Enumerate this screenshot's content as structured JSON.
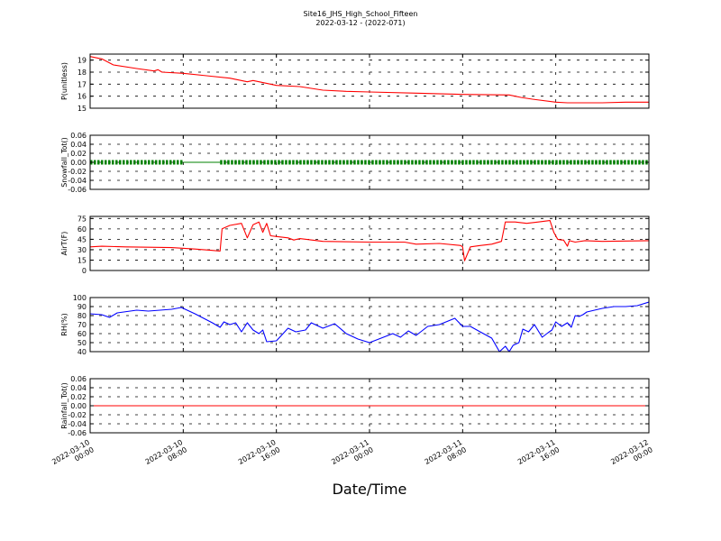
{
  "figure": {
    "title": "Site16_JHS_High_School_Fifteen",
    "subtitle": "2022-03-12 - (2022-071)",
    "xlabel": "Date/Time"
  },
  "colors": {
    "red": "#ff0000",
    "green": "#008000",
    "blue": "#0000ff",
    "axis": "#000000"
  },
  "chart_data": [
    {
      "type": "line",
      "ylabel": "P(unitless)",
      "ylim": [
        15,
        19.5
      ],
      "yticks": [
        15,
        16,
        17,
        18,
        19
      ],
      "ytick_labels": [
        "15",
        "16",
        "17",
        "18",
        "19"
      ],
      "grid": "dashed",
      "series": [
        {
          "color": "#ff0000",
          "x": [
            "2022-03-10 00:00",
            "2022-03-10 01:00",
            "2022-03-10 02:00",
            "2022-03-10 04:00",
            "2022-03-10 05:30",
            "2022-03-10 05:50",
            "2022-03-10 06:10",
            "2022-03-10 08:00",
            "2022-03-10 10:00",
            "2022-03-10 12:00",
            "2022-03-10 13:30",
            "2022-03-10 14:00",
            "2022-03-10 16:00",
            "2022-03-10 18:00",
            "2022-03-10 20:00",
            "2022-03-10 22:00",
            "2022-03-11 00:00",
            "2022-03-11 04:00",
            "2022-03-11 08:00",
            "2022-03-11 12:00",
            "2022-03-11 13:00",
            "2022-03-11 14:00",
            "2022-03-11 16:00",
            "2022-03-11 17:00",
            "2022-03-11 20:00",
            "2022-03-11 22:00",
            "2022-03-12 00:00"
          ],
          "y": [
            19.3,
            19.1,
            18.6,
            18.3,
            18.1,
            18.2,
            18.0,
            17.9,
            17.7,
            17.5,
            17.2,
            17.3,
            16.9,
            16.8,
            16.5,
            16.4,
            16.35,
            16.25,
            16.15,
            16.1,
            15.9,
            15.75,
            15.5,
            15.45,
            15.45,
            15.5,
            15.5
          ]
        }
      ]
    },
    {
      "type": "line",
      "ylabel": "Snowfall_Tot()",
      "ylim": [
        -0.06,
        0.06
      ],
      "yticks": [
        -0.06,
        -0.04,
        -0.02,
        0,
        0.02,
        0.04,
        0.06
      ],
      "ytick_labels": [
        "-0.06",
        "-0.04",
        "-0.02",
        "0.00",
        "0.02",
        "0.04",
        "0.06"
      ],
      "grid": "dashed",
      "series": [
        {
          "color": "#008000",
          "marker": "dot",
          "x": [
            "2022-03-10 00:00",
            "2022-03-10 08:00"
          ],
          "y": [
            0,
            0
          ]
        },
        {
          "color": "#008000",
          "x": [
            "2022-03-10 08:00",
            "2022-03-10 11:10"
          ],
          "y": [
            0,
            0
          ]
        },
        {
          "color": "#008000",
          "marker": "dot",
          "x": [
            "2022-03-10 11:10",
            "2022-03-12 00:00"
          ],
          "y": [
            0,
            0
          ]
        }
      ]
    },
    {
      "type": "line",
      "ylabel": "AirT(F)",
      "ylim": [
        0,
        78
      ],
      "yticks": [
        0,
        15,
        30,
        45,
        60,
        75
      ],
      "ytick_labels": [
        "0",
        "15",
        "30",
        "45",
        "60",
        "75"
      ],
      "grid": "dashed",
      "series": [
        {
          "color": "#ff0000",
          "x": [
            "2022-03-10 00:00",
            "2022-03-10 01:00",
            "2022-03-10 03:00",
            "2022-03-10 07:00",
            "2022-03-10 09:00",
            "2022-03-10 10:30",
            "2022-03-10 11:10",
            "2022-03-10 11:20",
            "2022-03-10 12:00",
            "2022-03-10 13:00",
            "2022-03-10 13:30",
            "2022-03-10 14:00",
            "2022-03-10 14:30",
            "2022-03-10 14:50",
            "2022-03-10 15:10",
            "2022-03-10 15:30",
            "2022-03-10 16:00",
            "2022-03-10 17:00",
            "2022-03-10 17:30",
            "2022-03-10 18:00",
            "2022-03-10 20:00",
            "2022-03-11 00:00",
            "2022-03-11 02:00",
            "2022-03-11 03:00",
            "2022-03-11 04:00",
            "2022-03-11 06:00",
            "2022-03-11 07:50",
            "2022-03-11 08:00",
            "2022-03-11 08:10",
            "2022-03-11 08:40",
            "2022-03-11 09:30",
            "2022-03-11 10:30",
            "2022-03-11 11:20",
            "2022-03-11 11:40",
            "2022-03-11 12:30",
            "2022-03-11 13:30",
            "2022-03-11 14:30",
            "2022-03-11 15:30",
            "2022-03-11 15:50",
            "2022-03-11 16:10",
            "2022-03-11 16:30",
            "2022-03-11 16:40",
            "2022-03-11 17:00",
            "2022-03-11 17:10",
            "2022-03-11 17:40",
            "2022-03-11 18:30",
            "2022-03-11 20:00",
            "2022-03-12 00:00"
          ],
          "y": [
            34,
            35,
            34,
            33,
            31,
            29,
            28,
            60,
            65,
            68,
            47,
            66,
            70,
            55,
            68,
            50,
            49,
            47,
            44,
            46,
            42,
            41,
            41,
            41,
            38,
            39,
            36,
            34,
            14,
            34,
            36,
            38,
            42,
            70,
            70,
            68,
            70,
            72,
            55,
            45,
            44,
            44,
            35,
            43,
            41,
            43,
            42,
            43
          ]
        }
      ]
    },
    {
      "type": "line",
      "ylabel": "RH(%)",
      "ylim": [
        40,
        100
      ],
      "yticks": [
        40,
        50,
        60,
        70,
        80,
        90,
        100
      ],
      "ytick_labels": [
        "40",
        "50",
        "60",
        "70",
        "80",
        "90",
        "100"
      ],
      "grid": "dashed",
      "series": [
        {
          "color": "#0000ff",
          "x": [
            "2022-03-10 00:00",
            "2022-03-10 01:00",
            "2022-03-10 01:40",
            "2022-03-10 02:20",
            "2022-03-10 04:00",
            "2022-03-10 05:00",
            "2022-03-10 07:00",
            "2022-03-10 07:50",
            "2022-03-10 09:00",
            "2022-03-10 10:30",
            "2022-03-10 11:10",
            "2022-03-10 11:30",
            "2022-03-10 12:00",
            "2022-03-10 12:30",
            "2022-03-10 13:00",
            "2022-03-10 13:30",
            "2022-03-10 14:00",
            "2022-03-10 14:30",
            "2022-03-10 14:50",
            "2022-03-10 15:10",
            "2022-03-10 16:00",
            "2022-03-10 17:00",
            "2022-03-10 17:40",
            "2022-03-10 18:30",
            "2022-03-10 19:00",
            "2022-03-10 20:00",
            "2022-03-10 21:00",
            "2022-03-10 22:00",
            "2022-03-10 23:00",
            "2022-03-11 00:00",
            "2022-03-11 01:00",
            "2022-03-11 02:00",
            "2022-03-11 02:40",
            "2022-03-11 03:20",
            "2022-03-11 04:00",
            "2022-03-11 05:00",
            "2022-03-11 06:00",
            "2022-03-11 07:20",
            "2022-03-11 08:00",
            "2022-03-11 08:40",
            "2022-03-11 09:30",
            "2022-03-11 10:30",
            "2022-03-11 11:10",
            "2022-03-11 11:40",
            "2022-03-11 12:00",
            "2022-03-11 12:20",
            "2022-03-11 12:50",
            "2022-03-11 13:10",
            "2022-03-11 13:40",
            "2022-03-11 14:10",
            "2022-03-11 14:50",
            "2022-03-11 15:20",
            "2022-03-11 15:40",
            "2022-03-11 16:00",
            "2022-03-11 16:30",
            "2022-03-11 17:00",
            "2022-03-11 17:20",
            "2022-03-11 17:40",
            "2022-03-11 18:00",
            "2022-03-11 18:20",
            "2022-03-11 18:40",
            "2022-03-11 19:00",
            "2022-03-11 20:00",
            "2022-03-11 21:00",
            "2022-03-11 22:00",
            "2022-03-11 23:00",
            "2022-03-12 00:00"
          ],
          "y": [
            82,
            81,
            78,
            83,
            86,
            85,
            87,
            89,
            82,
            72,
            67,
            73,
            70,
            72,
            62,
            72,
            64,
            60,
            64,
            51,
            52,
            66,
            62,
            64,
            72,
            66,
            71,
            60,
            54,
            50,
            55,
            60,
            56,
            63,
            58,
            68,
            70,
            77,
            68,
            68,
            62,
            55,
            40,
            46,
            40,
            47,
            50,
            65,
            62,
            70,
            56,
            61,
            64,
            73,
            68,
            72,
            67,
            80,
            79,
            81,
            84,
            85,
            88,
            90,
            90,
            91,
            95
          ]
        }
      ]
    },
    {
      "type": "line",
      "ylabel": "Rainfall_Tot()",
      "ylim": [
        -0.06,
        0.06
      ],
      "yticks": [
        -0.06,
        -0.04,
        -0.02,
        0,
        0.02,
        0.04,
        0.06
      ],
      "ytick_labels": [
        "-0.06",
        "-0.04",
        "-0.02",
        "0.00",
        "0.02",
        "0.04",
        "0.06"
      ],
      "grid": "dashed",
      "series": [
        {
          "color": "#ff0000",
          "x": [
            "2022-03-10 00:00",
            "2022-03-12 00:00"
          ],
          "y": [
            0,
            0
          ]
        }
      ]
    }
  ],
  "xaxis": {
    "range": [
      "2022-03-10 00:00",
      "2022-03-12 00:00"
    ],
    "ticks": [
      "2022-03-10 00:00",
      "2022-03-10 08:00",
      "2022-03-10 16:00",
      "2022-03-11 00:00",
      "2022-03-11 08:00",
      "2022-03-11 16:00",
      "2022-03-12 00:00"
    ],
    "tick_labels": [
      [
        "2022-03-10",
        "00:00"
      ],
      [
        "2022-03-10",
        "08:00"
      ],
      [
        "2022-03-10",
        "16:00"
      ],
      [
        "2022-03-11",
        "00:00"
      ],
      [
        "2022-03-11",
        "08:00"
      ],
      [
        "2022-03-11",
        "16:00"
      ],
      [
        "2022-03-12",
        "00:00"
      ]
    ]
  }
}
